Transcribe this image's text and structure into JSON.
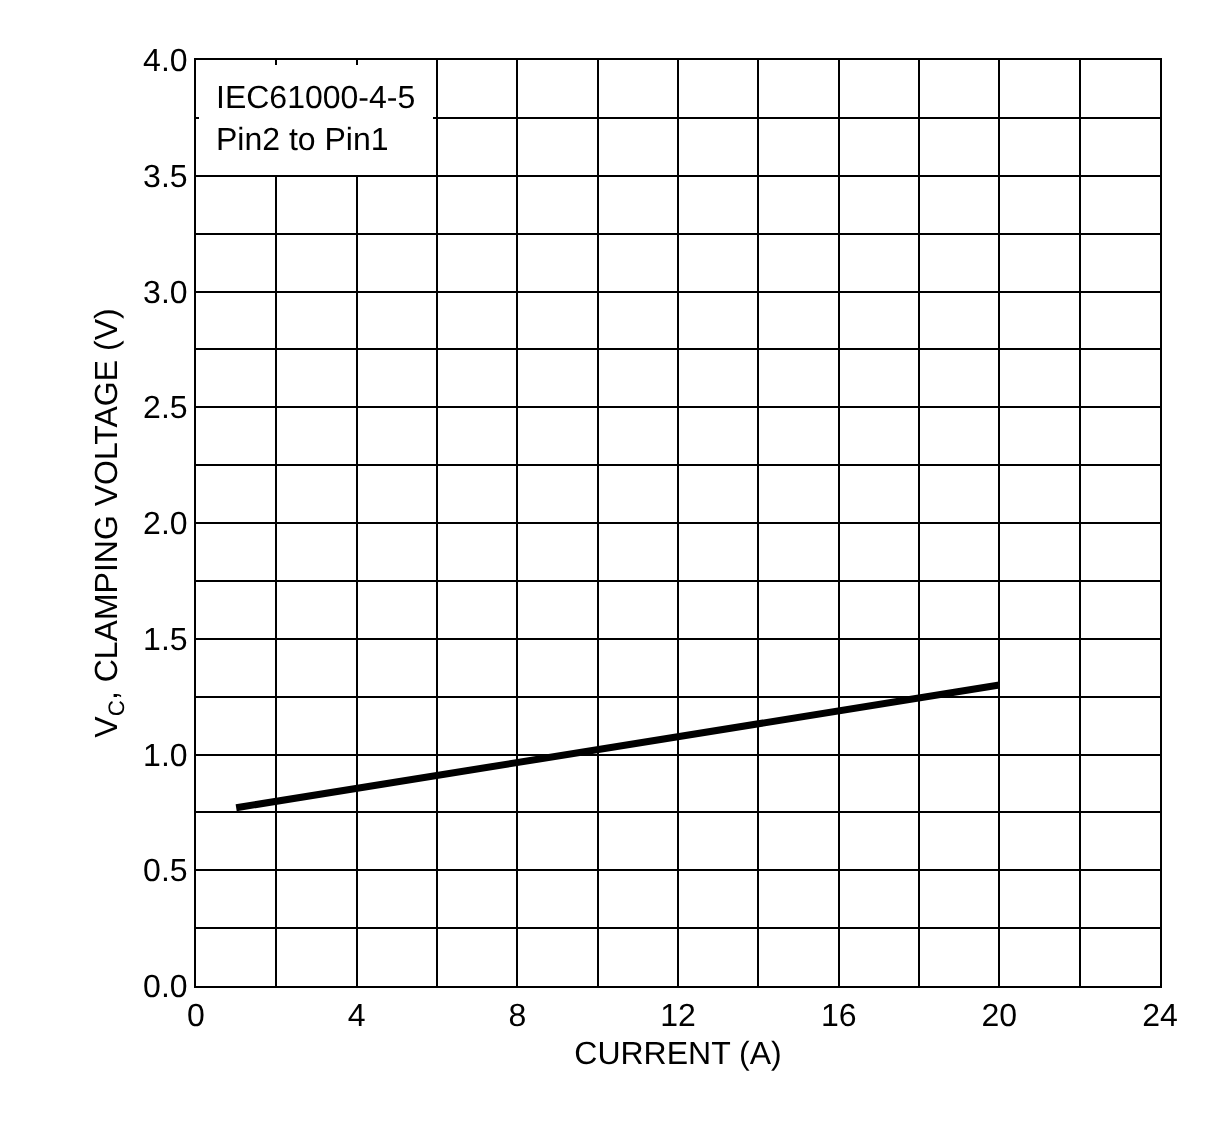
{
  "chart_data": {
    "type": "line",
    "xlabel": "CURRENT (A)",
    "ylabel": "V$_{C}$, CLAMPING VOLTAGE (V)",
    "x": [
      1,
      20
    ],
    "series": [
      {
        "color": "#000000",
        "values": [
          0.77,
          1.3
        ]
      }
    ],
    "xlim": [
      0,
      24
    ],
    "xticks": [
      0,
      {
        "value": 2,
        "label": null
      },
      4,
      {
        "value": 6,
        "label": null
      },
      8,
      {
        "value": 10,
        "label": null
      },
      12,
      {
        "value": 14,
        "label": null
      },
      16,
      {
        "value": 18,
        "label": null
      },
      20,
      {
        "value": 22,
        "label": null
      },
      24
    ],
    "ylim": [
      0,
      4
    ],
    "yticks": [
      {
        "value": 0,
        "label": "0.0"
      },
      {
        "value": 0.25,
        "label": null
      },
      {
        "value": 0.5,
        "label": "0.5"
      },
      {
        "value": 0.75,
        "label": null
      },
      {
        "value": 1,
        "label": "1.0"
      },
      {
        "value": 1.25,
        "label": null
      },
      {
        "value": 1.5,
        "label": "1.5"
      },
      {
        "value": 1.75,
        "label": null
      },
      {
        "value": 2,
        "label": "2.0"
      },
      {
        "value": 2.25,
        "label": null
      },
      {
        "value": 2.5,
        "label": "2.5"
      },
      {
        "value": 2.75,
        "label": null
      },
      {
        "value": 3,
        "label": "3.0"
      },
      {
        "value": 3.25,
        "label": null
      },
      {
        "value": 3.5,
        "label": "3.5"
      },
      {
        "value": 3.75,
        "label": null
      },
      {
        "value": 4,
        "label": "4.0"
      }
    ],
    "grid": true,
    "legend": false,
    "marker": "none",
    "line_style": "solid",
    "annotations": [
      "IEC61000-4-5\nPin2 to Pin1"
    ]
  }
}
